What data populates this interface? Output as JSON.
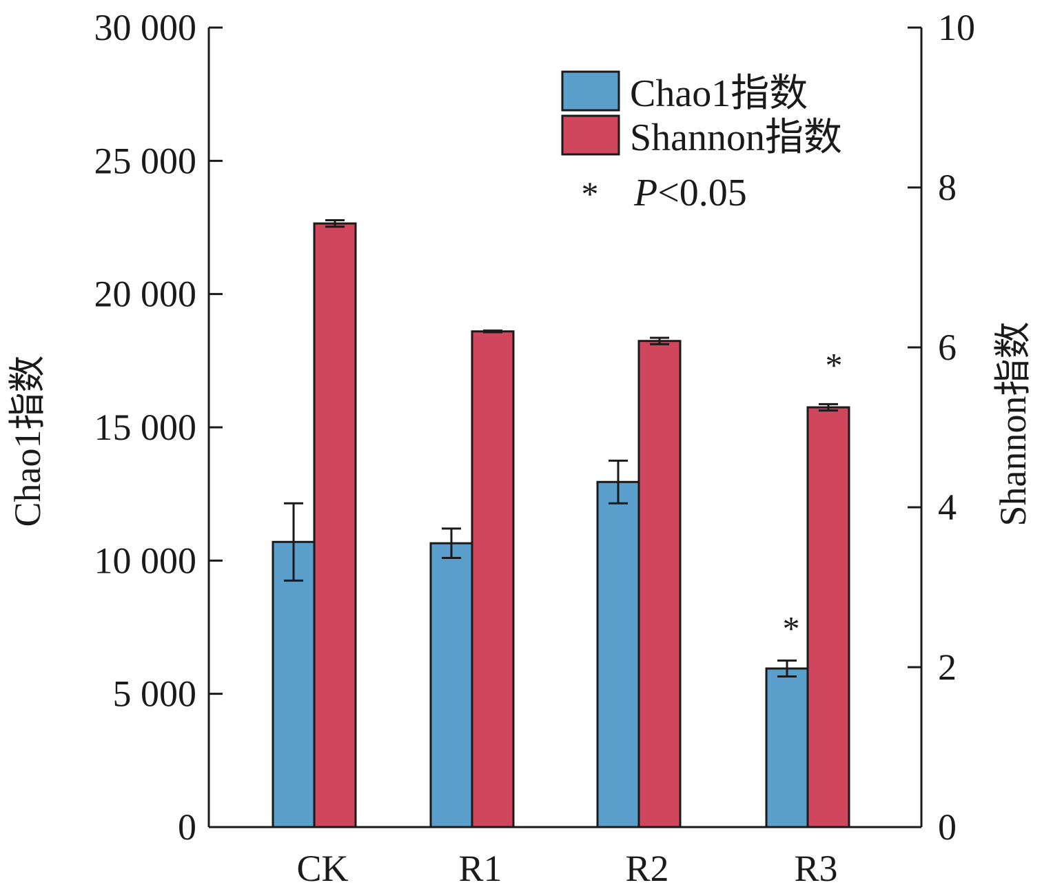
{
  "chart_data": {
    "type": "bar",
    "categories": [
      "CK",
      "R1",
      "R2",
      "R3"
    ],
    "series": [
      {
        "name": "Chao1指数",
        "axis": "left",
        "color": "#5a9fcc",
        "values": [
          10700,
          10650,
          12950,
          5950
        ],
        "errors": [
          1450,
          550,
          800,
          300
        ],
        "significant": [
          false,
          false,
          false,
          true
        ]
      },
      {
        "name": "Shannon指数",
        "axis": "right",
        "color": "#cf465d",
        "values": [
          7.55,
          6.2,
          6.08,
          5.25
        ],
        "errors": [
          0.04,
          0.01,
          0.04,
          0.04
        ],
        "significant": [
          false,
          false,
          false,
          true
        ]
      }
    ],
    "y_left": {
      "label": "Chao1指数",
      "ylim": [
        0,
        30000
      ],
      "ticks": [
        0,
        5000,
        10000,
        15000,
        20000,
        25000,
        30000
      ],
      "tick_labels": [
        "0",
        "5 000",
        "10 000",
        "15 000",
        "20 000",
        "25 000",
        "30 000"
      ]
    },
    "y_right": {
      "label": "Shannon指数",
      "ylim": [
        0,
        10
      ],
      "ticks": [
        0,
        2,
        4,
        6,
        8,
        10
      ],
      "tick_labels": [
        "0",
        "2",
        "4",
        "6",
        "8",
        "10"
      ]
    },
    "legend": {
      "placement": "top-right",
      "entries": [
        "Chao1指数",
        "Shannon指数"
      ],
      "significance_marker": "*",
      "significance_p": "P",
      "significance_text": "<0.05"
    },
    "significance_symbol": "*",
    "grid": false
  }
}
